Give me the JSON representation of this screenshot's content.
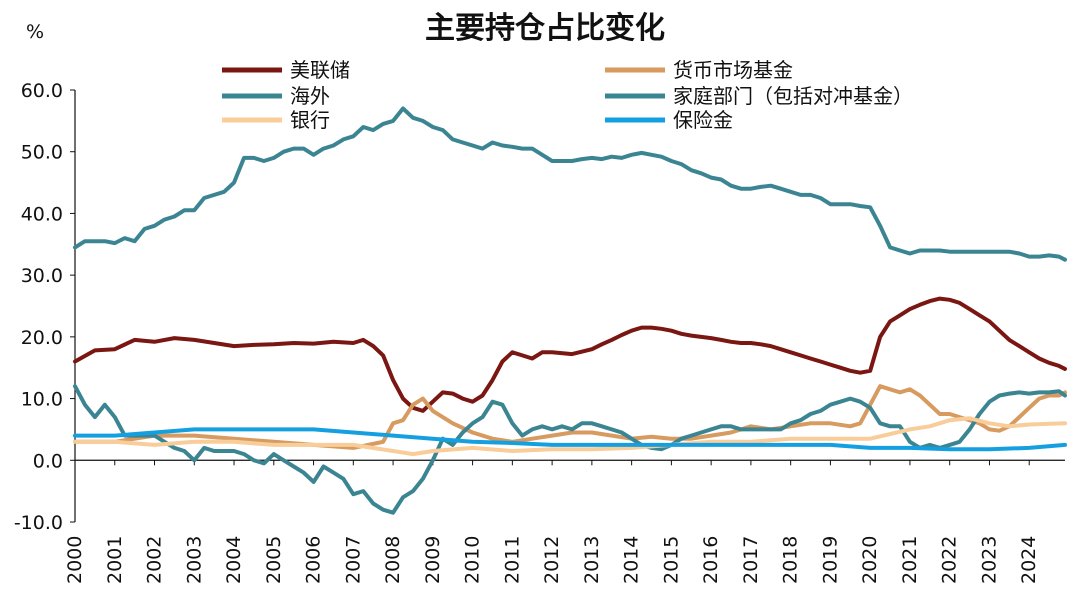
{
  "chart_data": {
    "type": "line",
    "title": "主要持仓占比变化",
    "ylabel": "%",
    "xlabel": "",
    "ylim": [
      -10,
      60
    ],
    "yticks": [
      "-10.0",
      "0.0",
      "10.0",
      "20.0",
      "30.0",
      "40.0",
      "50.0",
      "60.0"
    ],
    "categories": [
      "2000",
      "2001",
      "2002",
      "2003",
      "2004",
      "2005",
      "2006",
      "2007",
      "2008",
      "2009",
      "2010",
      "2011",
      "2012",
      "2013",
      "2014",
      "2015",
      "2016",
      "2017",
      "2018",
      "2019",
      "2020",
      "2021",
      "2022",
      "2023",
      "2024"
    ],
    "x_range": [
      2000,
      2024.9
    ],
    "series": [
      {
        "name": "美联储",
        "color": "#7a1712",
        "x": [
          2000,
          2000.5,
          2001,
          2001.5,
          2002,
          2002.5,
          2003,
          2003.5,
          2004,
          2004.5,
          2005,
          2005.5,
          2006,
          2006.5,
          2007,
          2007.25,
          2007.5,
          2007.75,
          2008,
          2008.25,
          2008.5,
          2008.75,
          2009,
          2009.25,
          2009.5,
          2009.75,
          2010,
          2010.25,
          2010.5,
          2010.75,
          2011,
          2011.25,
          2011.5,
          2011.75,
          2012,
          2012.5,
          2013,
          2013.25,
          2013.5,
          2013.75,
          2014,
          2014.25,
          2014.5,
          2014.75,
          2015,
          2015.25,
          2015.5,
          2015.75,
          2016,
          2016.25,
          2016.5,
          2016.75,
          2017,
          2017.25,
          2017.5,
          2017.75,
          2018,
          2018.25,
          2018.5,
          2018.75,
          2019,
          2019.25,
          2019.5,
          2019.75,
          2020,
          2020.25,
          2020.5,
          2020.75,
          2021,
          2021.25,
          2021.5,
          2021.75,
          2022,
          2022.25,
          2022.5,
          2022.75,
          2023,
          2023.25,
          2023.5,
          2023.75,
          2024,
          2024.25,
          2024.5,
          2024.75,
          2024.9
        ],
        "values": [
          16,
          17.8,
          18,
          19.5,
          19.2,
          19.8,
          19.5,
          19,
          18.5,
          18.7,
          18.8,
          19,
          18.9,
          19.2,
          19,
          19.5,
          18.5,
          17,
          13,
          10,
          8.5,
          8,
          9.5,
          11,
          10.8,
          10,
          9.5,
          10.5,
          13,
          16,
          17.5,
          17,
          16.5,
          17.5,
          17.5,
          17.2,
          18,
          18.8,
          19.5,
          20.3,
          21,
          21.5,
          21.5,
          21.3,
          21,
          20.5,
          20.2,
          20,
          19.8,
          19.5,
          19.2,
          19,
          19,
          18.8,
          18.5,
          18,
          17.5,
          17,
          16.5,
          16,
          15.5,
          15,
          14.5,
          14.2,
          14.5,
          20,
          22.5,
          23.5,
          24.5,
          25.2,
          25.8,
          26.2,
          26,
          25.5,
          24.5,
          23.5,
          22.5,
          21,
          19.5,
          18.5,
          17.5,
          16.5,
          15.8,
          15.3,
          14.8
        ]
      },
      {
        "name": "货币市场基金",
        "color": "#d79a5f",
        "x": [
          2000,
          2001,
          2002,
          2003,
          2004,
          2005,
          2006,
          2007,
          2007.75,
          2008,
          2008.25,
          2008.5,
          2008.75,
          2009,
          2009.5,
          2010,
          2010.5,
          2011,
          2011.5,
          2012,
          2012.5,
          2013,
          2013.5,
          2014,
          2014.5,
          2015,
          2015.5,
          2016,
          2016.5,
          2017,
          2017.5,
          2018,
          2018.5,
          2019,
          2019.5,
          2019.75,
          2020,
          2020.25,
          2020.5,
          2020.75,
          2021,
          2021.25,
          2021.5,
          2021.75,
          2022,
          2022.25,
          2022.5,
          2022.75,
          2023,
          2023.25,
          2023.5,
          2023.75,
          2024,
          2024.25,
          2024.5,
          2024.75,
          2024.9
        ],
        "values": [
          3,
          3,
          4,
          4,
          3.5,
          3,
          2.5,
          2,
          3,
          6,
          6.5,
          9,
          10,
          8,
          6,
          4.5,
          3.5,
          3,
          3.5,
          4,
          4.5,
          4.5,
          4,
          3.5,
          3.8,
          3.5,
          3.5,
          4,
          4.5,
          5.5,
          5,
          5.5,
          6,
          6,
          5.5,
          6,
          9,
          12,
          11.5,
          11,
          11.5,
          10.5,
          9,
          7.5,
          7.5,
          7,
          6.5,
          6,
          5,
          4.8,
          5.5,
          7,
          8.5,
          10,
          10.5,
          10.5,
          11
        ]
      },
      {
        "name": "海外",
        "color": "#3b8593",
        "x": [
          2000,
          2000.25,
          2000.5,
          2000.75,
          2001,
          2001.25,
          2001.5,
          2001.75,
          2002,
          2002.25,
          2002.5,
          2002.75,
          2003,
          2003.25,
          2003.5,
          2003.75,
          2004,
          2004.25,
          2004.5,
          2004.75,
          2005,
          2005.25,
          2005.5,
          2005.75,
          2006,
          2006.25,
          2006.5,
          2006.75,
          2007,
          2007.25,
          2007.5,
          2007.75,
          2008,
          2008.25,
          2008.5,
          2008.75,
          2009,
          2009.25,
          2009.5,
          2009.75,
          2010,
          2010.25,
          2010.5,
          2010.75,
          2011,
          2011.25,
          2011.5,
          2011.75,
          2012,
          2012.25,
          2012.5,
          2012.75,
          2013,
          2013.25,
          2013.5,
          2013.75,
          2014,
          2014.25,
          2014.5,
          2014.75,
          2015,
          2015.25,
          2015.5,
          2015.75,
          2016,
          2016.25,
          2016.5,
          2016.75,
          2017,
          2017.25,
          2017.5,
          2017.75,
          2018,
          2018.25,
          2018.5,
          2018.75,
          2019,
          2019.25,
          2019.5,
          2019.75,
          2020,
          2020.25,
          2020.5,
          2020.75,
          2021,
          2021.25,
          2021.5,
          2021.75,
          2022,
          2022.25,
          2022.5,
          2022.75,
          2023,
          2023.25,
          2023.5,
          2023.75,
          2024,
          2024.25,
          2024.5,
          2024.75,
          2024.9
        ],
        "values": [
          34.5,
          35.5,
          35.5,
          35.5,
          35.2,
          36,
          35.5,
          37.5,
          38,
          39,
          39.5,
          40.5,
          40.5,
          42.5,
          43,
          43.5,
          45,
          49,
          49,
          48.5,
          49,
          50,
          50.5,
          50.5,
          49.5,
          50.5,
          51,
          52,
          52.5,
          54,
          53.5,
          54.5,
          55,
          57,
          55.5,
          55,
          54,
          53.5,
          52,
          51.5,
          51,
          50.5,
          51.5,
          51,
          50.8,
          50.5,
          50.5,
          49.5,
          48.5,
          48.5,
          48.5,
          48.8,
          49,
          48.8,
          49.2,
          49,
          49.5,
          49.8,
          49.5,
          49.2,
          48.5,
          48,
          47,
          46.5,
          45.8,
          45.5,
          44.5,
          44,
          44,
          44.3,
          44.5,
          44,
          43.5,
          43,
          43,
          42.5,
          41.5,
          41.5,
          41.5,
          41.2,
          41,
          38,
          34.5,
          34,
          33.5,
          34,
          34,
          34,
          33.8,
          33.8,
          33.8,
          33.8,
          33.8,
          33.8,
          33.8,
          33.5,
          33,
          33,
          33.2,
          33,
          32.5
        ]
      },
      {
        "name": "家庭部门（包括对冲基金）",
        "color": "#3b8593",
        "x": [
          2000,
          2000.25,
          2000.5,
          2000.75,
          2001,
          2001.25,
          2001.5,
          2001.75,
          2002,
          2002.25,
          2002.5,
          2002.75,
          2003,
          2003.25,
          2003.5,
          2003.75,
          2004,
          2004.25,
          2004.5,
          2004.75,
          2005,
          2005.25,
          2005.5,
          2005.75,
          2006,
          2006.25,
          2006.5,
          2006.75,
          2007,
          2007.25,
          2007.5,
          2007.75,
          2008,
          2008.25,
          2008.5,
          2008.75,
          2009,
          2009.25,
          2009.5,
          2009.75,
          2010,
          2010.25,
          2010.5,
          2010.75,
          2011,
          2011.25,
          2011.5,
          2011.75,
          2012,
          2012.25,
          2012.5,
          2012.75,
          2013,
          2013.25,
          2013.5,
          2013.75,
          2014,
          2014.25,
          2014.5,
          2014.75,
          2015,
          2015.25,
          2015.5,
          2015.75,
          2016,
          2016.25,
          2016.5,
          2016.75,
          2017,
          2017.25,
          2017.5,
          2017.75,
          2018,
          2018.25,
          2018.5,
          2018.75,
          2019,
          2019.25,
          2019.5,
          2019.75,
          2020,
          2020.25,
          2020.5,
          2020.75,
          2021,
          2021.25,
          2021.5,
          2021.75,
          2022,
          2022.25,
          2022.5,
          2022.75,
          2023,
          2023.25,
          2023.5,
          2023.75,
          2024,
          2024.25,
          2024.5,
          2024.75,
          2024.9
        ],
        "values": [
          12,
          9,
          7,
          9,
          7,
          4,
          4,
          4,
          4,
          3,
          2,
          1.5,
          0,
          2,
          1.5,
          1.5,
          1.5,
          1,
          0,
          -0.5,
          1,
          0,
          -1,
          -2,
          -3.5,
          -1,
          -2,
          -3,
          -5.5,
          -5,
          -7,
          -8,
          -8.5,
          -6,
          -5,
          -3,
          0,
          3.5,
          2.5,
          4.5,
          6,
          7,
          9.5,
          9,
          6,
          4,
          5,
          5.5,
          5,
          5.5,
          5,
          6,
          6,
          5.5,
          5,
          4.5,
          3.5,
          2.5,
          2,
          1.8,
          2.5,
          3.5,
          4,
          4.5,
          5,
          5.5,
          5.5,
          5,
          5,
          5,
          5,
          5,
          6,
          6.5,
          7.5,
          8,
          9,
          9.5,
          10,
          9.5,
          8.5,
          6,
          5.5,
          5.5,
          3,
          2,
          2.5,
          2,
          2.5,
          3,
          5,
          7.5,
          9.5,
          10.5,
          10.8,
          11,
          10.8,
          11,
          11,
          11.2,
          10.5
        ]
      },
      {
        "name": "银行",
        "color": "#f8cd9a",
        "x": [
          2000,
          2001,
          2002,
          2003,
          2004,
          2005,
          2006,
          2007,
          2008,
          2008.5,
          2009,
          2010,
          2011,
          2012,
          2013,
          2014,
          2015,
          2016,
          2017,
          2018,
          2019,
          2020,
          2021,
          2021.5,
          2022,
          2022.5,
          2023,
          2023.5,
          2024,
          2024.9
        ],
        "values": [
          3,
          3,
          2.5,
          3,
          3,
          2.5,
          2.5,
          2.5,
          1.5,
          1,
          1.5,
          2,
          1.5,
          1.8,
          1.8,
          2,
          2.5,
          3,
          3,
          3.5,
          3.5,
          3.5,
          5,
          5.5,
          6.5,
          6.8,
          6,
          5.5,
          5.8,
          6
        ]
      },
      {
        "name": "保险金",
        "color": "#14a0e0",
        "x": [
          2000,
          2001,
          2002,
          2003,
          2004,
          2005,
          2006,
          2007,
          2008,
          2009,
          2010,
          2011,
          2012,
          2013,
          2014,
          2015,
          2016,
          2017,
          2018,
          2019,
          2020,
          2021,
          2022,
          2023,
          2024,
          2024.9
        ],
        "values": [
          4,
          4,
          4.5,
          5,
          5,
          5,
          5,
          4.5,
          4,
          3.5,
          3,
          2.8,
          2.5,
          2.5,
          2.5,
          2.5,
          2.5,
          2.5,
          2.5,
          2.5,
          2,
          2,
          1.8,
          1.8,
          2,
          2.5
        ]
      }
    ],
    "legend": {
      "placement": "top",
      "entries": [
        "美联储",
        "货币市场基金",
        "海外",
        "家庭部门（包括对冲基金）",
        "银行",
        "保险金"
      ]
    }
  }
}
